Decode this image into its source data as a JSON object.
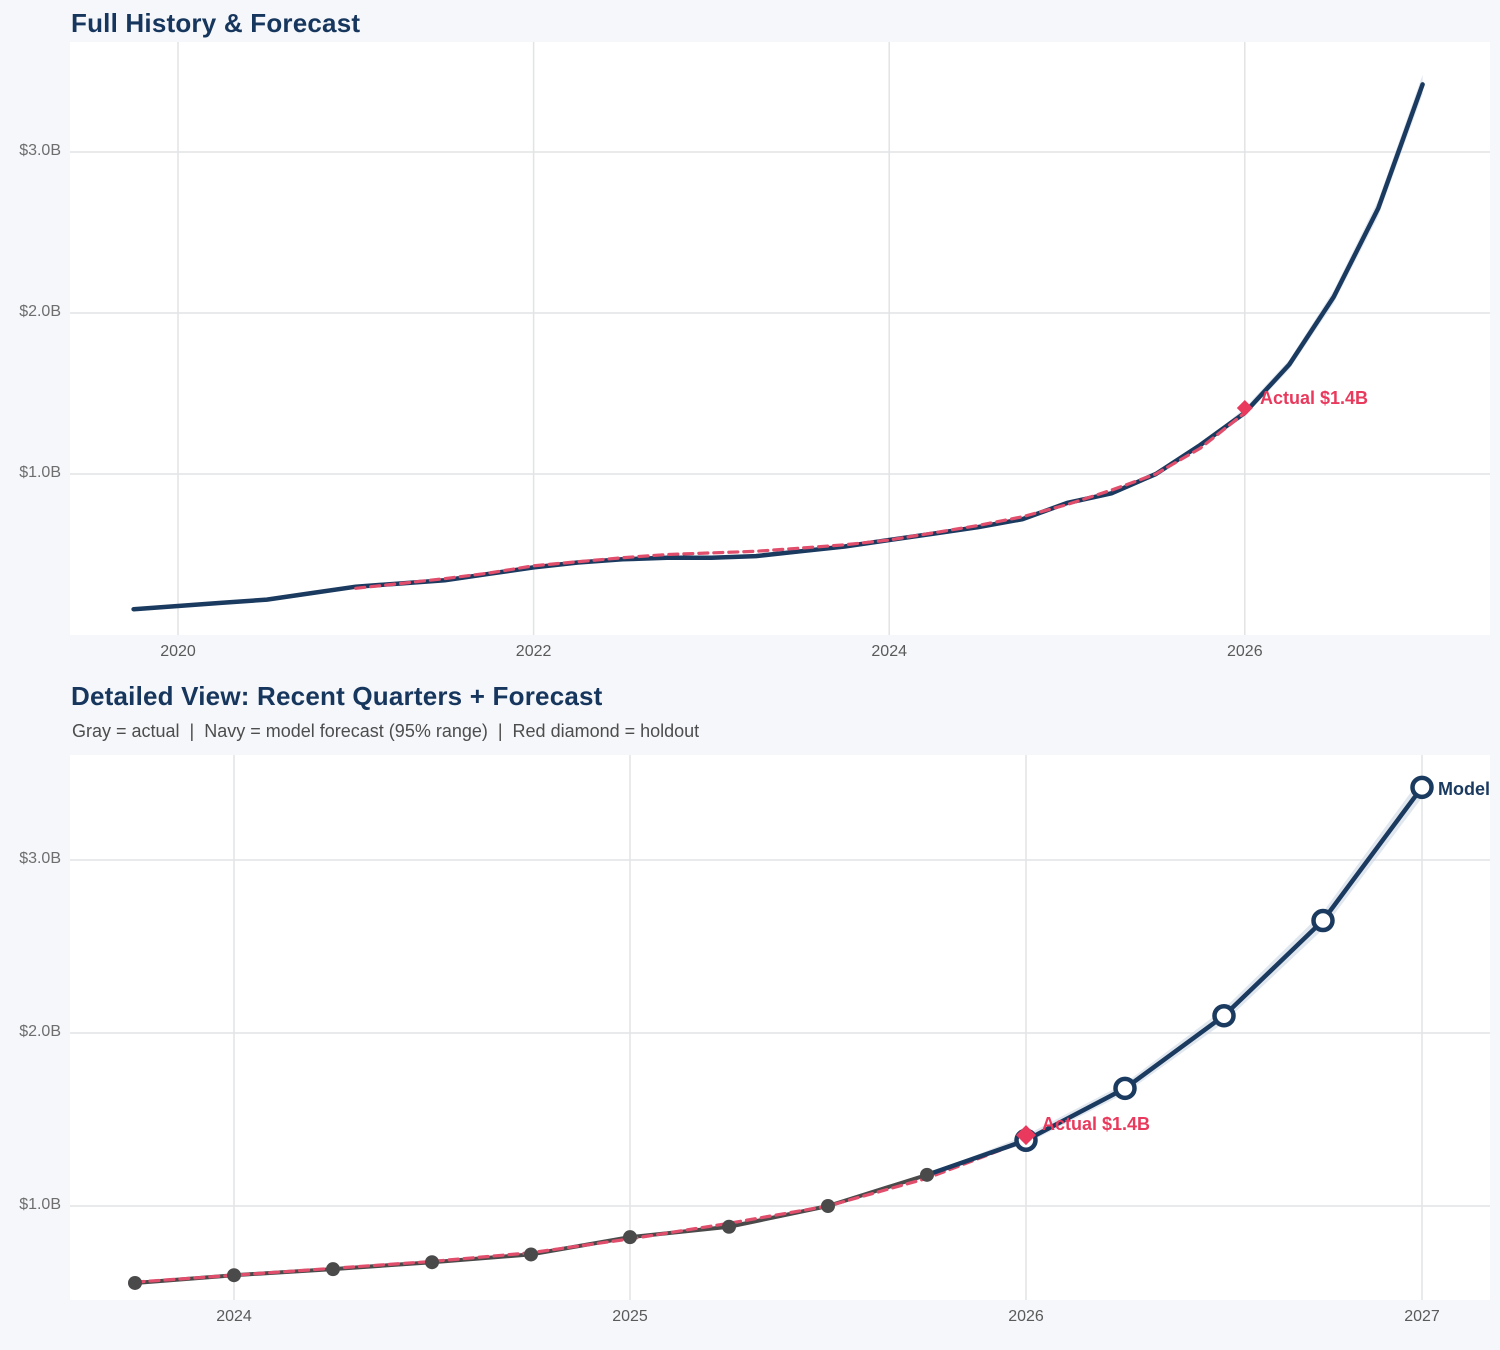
{
  "colors": {
    "navy": "#1b3a5f",
    "red": "#e93a5d",
    "red_dash": "#e04e6c",
    "gray_actual": "#4a4a4a",
    "grid": "#e2e3e5",
    "band": "#c9d3e2",
    "plot_bg": "#ffffff",
    "page_bg": "#f5f7fa",
    "title": "#17365d"
  },
  "chart_data": [
    {
      "type": "line",
      "title": "Full History & Forecast",
      "xlabel": "",
      "ylabel": "",
      "x_unit": "year (quarterly points)",
      "xlim": [
        2019.55,
        2027.15
      ],
      "ylim": [
        0.0,
        3.65
      ],
      "grid": true,
      "xticks": [
        {
          "label": "2020",
          "x": 2020
        },
        {
          "label": "2022",
          "x": 2022
        },
        {
          "label": "2024",
          "x": 2024
        },
        {
          "label": "2026",
          "x": 2026
        }
      ],
      "yticks": [
        {
          "label": "$1.0B",
          "v": 1.0
        },
        {
          "label": "$2.0B",
          "v": 2.0
        },
        {
          "label": "$3.0B",
          "v": 3.0
        }
      ],
      "series": [
        {
          "name": "revenue-history-and-forecast",
          "role": "navy-solid",
          "x_start": 2019.75,
          "x_step": 0.25,
          "values": [
            0.16,
            0.18,
            0.2,
            0.22,
            0.26,
            0.3,
            0.32,
            0.34,
            0.38,
            0.42,
            0.45,
            0.47,
            0.48,
            0.48,
            0.49,
            0.52,
            0.55,
            0.59,
            0.63,
            0.67,
            0.72,
            0.82,
            0.88,
            1.0,
            1.18,
            1.38,
            1.68,
            2.1,
            2.65,
            3.42
          ]
        },
        {
          "name": "model-fit",
          "role": "red-dashed",
          "x_start": 2021.0,
          "x_step": 0.25,
          "values": [
            0.29,
            0.32,
            0.35,
            0.385,
            0.43,
            0.455,
            0.48,
            0.5,
            0.51,
            0.52,
            0.54,
            0.56,
            0.59,
            0.635,
            0.68,
            0.735,
            0.81,
            0.9,
            1.0,
            1.16,
            1.38
          ]
        }
      ],
      "band": {
        "x_start": 2025.75,
        "x_step": 0.25,
        "low": [
          1.18,
          1.36,
          1.65,
          2.06,
          2.6,
          3.36
        ],
        "high": [
          1.18,
          1.41,
          1.71,
          2.14,
          2.7,
          3.48
        ]
      },
      "holdout": {
        "x": 2026.0,
        "value": 1.41,
        "label": "Actual $1.4B"
      }
    },
    {
      "type": "line",
      "title": "Detailed View: Recent Quarters + Forecast",
      "subtitle": "Gray = actual  |  Navy = model forecast (95% range)  |  Red diamond = holdout",
      "xlabel": "",
      "ylabel": "",
      "x_unit": "year (quarterly points)",
      "xlim": [
        2023.6,
        2027.17
      ],
      "ylim": [
        0.45,
        3.6
      ],
      "grid": true,
      "xticks": [
        {
          "label": "2024",
          "x": 2024
        },
        {
          "label": "2025",
          "x": 2025
        },
        {
          "label": "2026",
          "x": 2026
        },
        {
          "label": "2027",
          "x": 2027
        }
      ],
      "yticks": [
        {
          "label": "$1.0B",
          "v": 1.0
        },
        {
          "label": "$2.0B",
          "v": 2.0
        },
        {
          "label": "$3.0B",
          "v": 3.0
        }
      ],
      "series": [
        {
          "name": "actual-quarterly",
          "role": "gray-solid-dots",
          "x_start": 2023.75,
          "x_step": 0.25,
          "values": [
            0.555,
            0.6,
            0.635,
            0.675,
            0.72,
            0.82,
            0.88,
            1.0,
            1.18
          ]
        },
        {
          "name": "model-fit",
          "role": "red-dashed",
          "x_start": 2023.75,
          "x_step": 0.25,
          "values": [
            0.56,
            0.6,
            0.64,
            0.68,
            0.73,
            0.81,
            0.9,
            1.0,
            1.16,
            1.38
          ]
        },
        {
          "name": "model-forecast",
          "role": "navy-open-circles",
          "x_start": 2025.75,
          "x_step": 0.25,
          "marker_from_index": 1,
          "values": [
            1.18,
            1.38,
            1.68,
            2.1,
            2.65,
            3.42
          ]
        }
      ],
      "band": {
        "x_start": 2025.75,
        "x_step": 0.25,
        "low": [
          1.18,
          1.36,
          1.65,
          2.06,
          2.6,
          3.36
        ],
        "high": [
          1.18,
          1.41,
          1.71,
          2.14,
          2.7,
          3.48
        ]
      },
      "holdout": {
        "x": 2026.0,
        "value": 1.41,
        "label": "Actual $1.4B"
      },
      "end_label": "Model"
    }
  ]
}
